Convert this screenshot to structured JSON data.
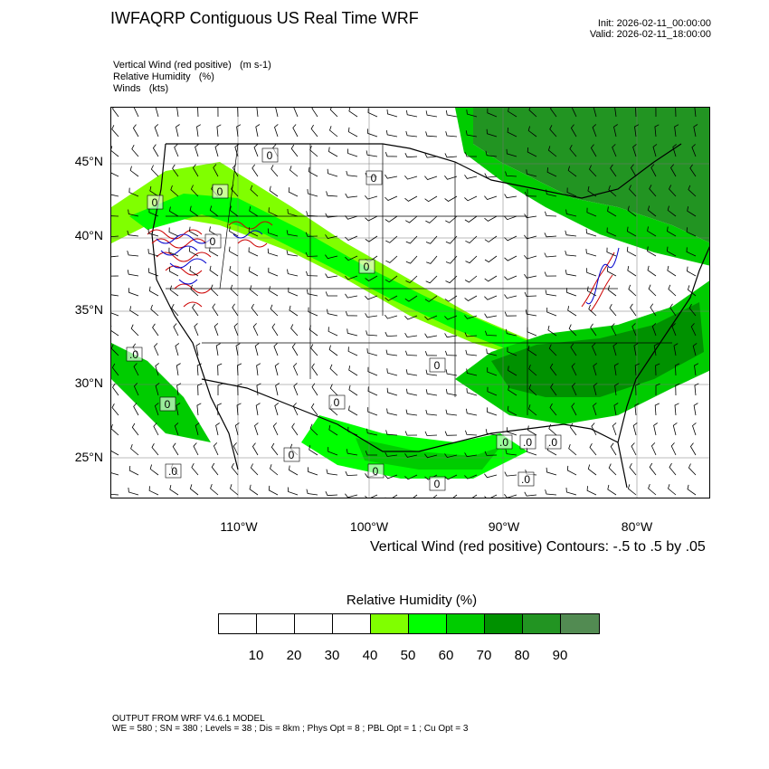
{
  "header": {
    "title": "IWFAQRP Contiguous US Real Time WRF",
    "init": "Init: 2026-02-11_00:00:00",
    "valid": "Valid: 2026-02-11_18:00:00"
  },
  "fields": [
    "Vertical Wind (red positive)   (m s-1)",
    "Relative Humidity   (%)",
    "Winds   (kts)"
  ],
  "axes": {
    "lat_labels": [
      "45°N",
      "40°N",
      "35°N",
      "30°N",
      "25°N"
    ],
    "lon_labels": [
      "110°W",
      "100°W",
      "90°W",
      "80°W"
    ]
  },
  "contour_note": "Vertical Wind (red positive) Contours: -.5 to .5 by .05",
  "colorbar": {
    "title": "Relative Humidity  (%)",
    "labels": [
      "10",
      "20",
      "30",
      "40",
      "50",
      "60",
      "70",
      "80",
      "90"
    ],
    "colors": [
      "#ffffff",
      "#ffffff",
      "#ffffff",
      "#ffffff",
      "#80ff00",
      "#00ff00",
      "#00cc00",
      "#009100",
      "#229422",
      "#528b52"
    ]
  },
  "map": {
    "value_labels": [
      "0",
      ".0"
    ],
    "colors": {
      "rh_light": "#80ff00",
      "rh_mid": "#00ff00",
      "rh_dark": "#00cc00",
      "rh_deep": "#229422",
      "updraft": "#cc0000",
      "downdraft": "#0000cc"
    }
  },
  "footer": {
    "line1": "OUTPUT FROM WRF V4.6.1 MODEL",
    "line2": "WE = 580 ; SN = 380 ; Levels = 38 ; Dis = 8km ; Phys Opt = 8 ; PBL Opt = 1 ; Cu Opt = 3"
  }
}
